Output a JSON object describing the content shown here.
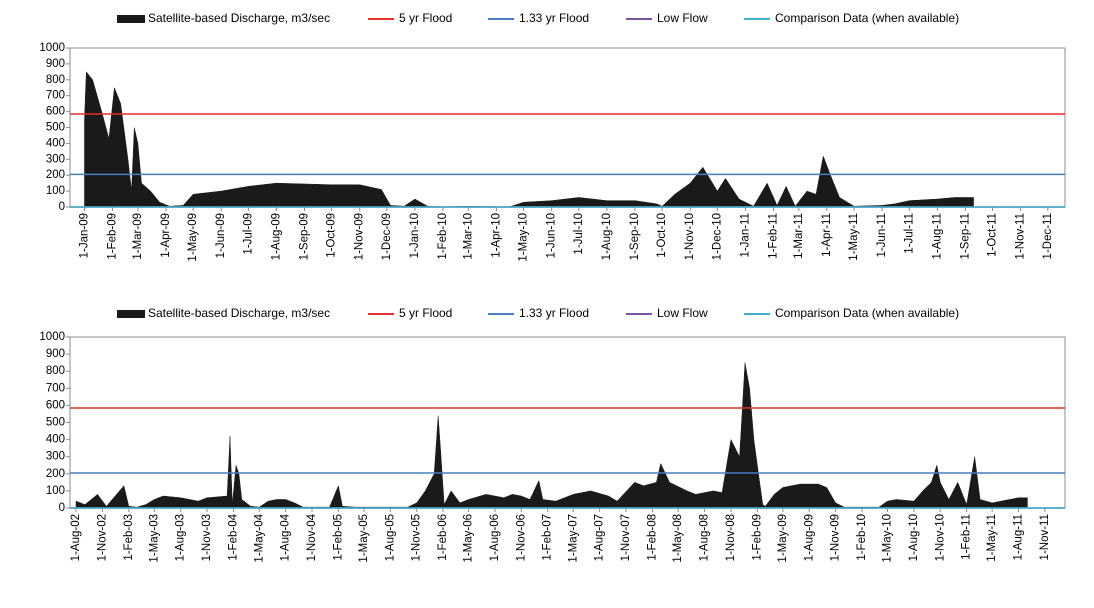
{
  "chart_data": [
    {
      "type": "area",
      "ylim": [
        0,
        1000
      ],
      "yticks": [
        0,
        100,
        200,
        300,
        400,
        500,
        600,
        700,
        800,
        900,
        1000
      ],
      "xlim": [
        "2008-12-16",
        "2011-12-20"
      ],
      "xticks": [
        {
          "value": "2009-01-01",
          "label": "1-Jan-09"
        },
        {
          "value": "2009-02-01",
          "label": "1-Feb-09"
        },
        {
          "value": "2009-03-01",
          "label": "1-Mar-09"
        },
        {
          "value": "2009-04-01",
          "label": "1-Apr-09"
        },
        {
          "value": "2009-05-01",
          "label": "1-May-09"
        },
        {
          "value": "2009-06-01",
          "label": "1-Jun-09"
        },
        {
          "value": "2009-07-01",
          "label": "1-Jul-09"
        },
        {
          "value": "2009-08-01",
          "label": "1-Aug-09"
        },
        {
          "value": "2009-09-01",
          "label": "1-Sep-09"
        },
        {
          "value": "2009-10-01",
          "label": "1-Oct-09"
        },
        {
          "value": "2009-11-01",
          "label": "1-Nov-09"
        },
        {
          "value": "2009-12-01",
          "label": "1-Dec-09"
        },
        {
          "value": "2010-01-01",
          "label": "1-Jan-10"
        },
        {
          "value": "2010-02-01",
          "label": "1-Feb-10"
        },
        {
          "value": "2010-03-01",
          "label": "1-Mar-10"
        },
        {
          "value": "2010-04-01",
          "label": "1-Apr-10"
        },
        {
          "value": "2010-05-01",
          "label": "1-May-10"
        },
        {
          "value": "2010-06-01",
          "label": "1-Jun-10"
        },
        {
          "value": "2010-07-01",
          "label": "1-Jul-10"
        },
        {
          "value": "2010-08-01",
          "label": "1-Aug-10"
        },
        {
          "value": "2010-09-01",
          "label": "1-Sep-10"
        },
        {
          "value": "2010-10-01",
          "label": "1-Oct-10"
        },
        {
          "value": "2010-11-01",
          "label": "1-Nov-10"
        },
        {
          "value": "2010-12-01",
          "label": "1-Dec-10"
        },
        {
          "value": "2011-01-01",
          "label": "1-Jan-11"
        },
        {
          "value": "2011-02-01",
          "label": "1-Feb-11"
        },
        {
          "value": "2011-03-01",
          "label": "1-Mar-11"
        },
        {
          "value": "2011-04-01",
          "label": "1-Apr-11"
        },
        {
          "value": "2011-05-01",
          "label": "1-May-11"
        },
        {
          "value": "2011-06-01",
          "label": "1-Jun-11"
        },
        {
          "value": "2011-07-01",
          "label": "1-Jul-11"
        },
        {
          "value": "2011-08-01",
          "label": "1-Aug-11"
        },
        {
          "value": "2011-09-01",
          "label": "1-Sep-11"
        },
        {
          "value": "2011-10-01",
          "label": "1-Oct-11"
        },
        {
          "value": "2011-11-01",
          "label": "1-Nov-11"
        },
        {
          "value": "2011-12-01",
          "label": "1-Dec-11"
        }
      ],
      "series": [
        {
          "name": "Satellite-based Discharge, m3/sec",
          "color": "#1a1a1a",
          "x": [
            "2009-01-01",
            "2009-01-03",
            "2009-01-10",
            "2009-01-20",
            "2009-01-28",
            "2009-02-03",
            "2009-02-10",
            "2009-02-18",
            "2009-02-22",
            "2009-02-25",
            "2009-03-01",
            "2009-03-05",
            "2009-03-15",
            "2009-03-25",
            "2009-04-05",
            "2009-04-20",
            "2009-05-01",
            "2009-06-01",
            "2009-07-01",
            "2009-08-01",
            "2009-09-01",
            "2009-10-01",
            "2009-11-01",
            "2009-11-25",
            "2009-12-05",
            "2009-12-20",
            "2010-01-01",
            "2010-01-15",
            "2010-02-01",
            "2010-03-01",
            "2010-04-15",
            "2010-05-01",
            "2010-06-01",
            "2010-07-01",
            "2010-08-01",
            "2010-09-01",
            "2010-09-25",
            "2010-10-01",
            "2010-10-15",
            "2010-11-01",
            "2010-11-15",
            "2010-12-01",
            "2010-12-10",
            "2010-12-25",
            "2011-01-10",
            "2011-01-25",
            "2011-02-05",
            "2011-02-15",
            "2011-02-25",
            "2011-03-10",
            "2011-03-20",
            "2011-03-28",
            "2011-04-05",
            "2011-04-15",
            "2011-05-01",
            "2011-06-01",
            "2011-06-15",
            "2011-07-01",
            "2011-08-01",
            "2011-08-20",
            "2011-09-10"
          ],
          "values": [
            550,
            850,
            800,
            600,
            430,
            750,
            650,
            300,
            100,
            500,
            400,
            150,
            100,
            30,
            5,
            10,
            80,
            100,
            130,
            150,
            145,
            140,
            140,
            110,
            10,
            5,
            50,
            5,
            0,
            5,
            0,
            30,
            40,
            60,
            40,
            40,
            20,
            5,
            80,
            150,
            250,
            100,
            180,
            50,
            5,
            150,
            10,
            130,
            5,
            100,
            80,
            320,
            200,
            60,
            5,
            10,
            20,
            40,
            50,
            60,
            60
          ]
        },
        {
          "name": "5 yr Flood",
          "color": "#e3312b",
          "level": 585
        },
        {
          "name": "1.33 yr Flood",
          "color": "#4a7cc4",
          "level": 205
        },
        {
          "name": "Low Flow",
          "color": "#7b52a8",
          "level": 0
        },
        {
          "name": "Comparison Data (when available)",
          "color": "#3fb3c9",
          "level": 0
        }
      ]
    },
    {
      "type": "area",
      "ylim": [
        0,
        1000
      ],
      "yticks": [
        0,
        100,
        200,
        300,
        400,
        500,
        600,
        700,
        800,
        900,
        1000
      ],
      "xlim": [
        "2002-07-11",
        "2012-01-10"
      ],
      "xticks": [
        {
          "value": "2002-08-01",
          "label": "1-Aug-02"
        },
        {
          "value": "2002-11-01",
          "label": "1-Nov-02"
        },
        {
          "value": "2003-02-01",
          "label": "1-Feb-03"
        },
        {
          "value": "2003-05-01",
          "label": "1-May-03"
        },
        {
          "value": "2003-08-01",
          "label": "1-Aug-03"
        },
        {
          "value": "2003-11-01",
          "label": "1-Nov-03"
        },
        {
          "value": "2004-02-01",
          "label": "1-Feb-04"
        },
        {
          "value": "2004-05-01",
          "label": "1-May-04"
        },
        {
          "value": "2004-08-01",
          "label": "1-Aug-04"
        },
        {
          "value": "2004-11-01",
          "label": "1-Nov-04"
        },
        {
          "value": "2005-02-01",
          "label": "1-Feb-05"
        },
        {
          "value": "2005-05-01",
          "label": "1-May-05"
        },
        {
          "value": "2005-08-01",
          "label": "1-Aug-05"
        },
        {
          "value": "2005-11-01",
          "label": "1-Nov-05"
        },
        {
          "value": "2006-02-01",
          "label": "1-Feb-06"
        },
        {
          "value": "2006-05-01",
          "label": "1-May-06"
        },
        {
          "value": "2006-08-01",
          "label": "1-Aug-06"
        },
        {
          "value": "2006-11-01",
          "label": "1-Nov-06"
        },
        {
          "value": "2007-02-01",
          "label": "1-Feb-07"
        },
        {
          "value": "2007-05-01",
          "label": "1-May-07"
        },
        {
          "value": "2007-08-01",
          "label": "1-Aug-07"
        },
        {
          "value": "2007-11-01",
          "label": "1-Nov-07"
        },
        {
          "value": "2008-02-01",
          "label": "1-Feb-08"
        },
        {
          "value": "2008-05-01",
          "label": "1-May-08"
        },
        {
          "value": "2008-08-01",
          "label": "1-Aug-08"
        },
        {
          "value": "2008-11-01",
          "label": "1-Nov-08"
        },
        {
          "value": "2009-02-01",
          "label": "1-Feb-09"
        },
        {
          "value": "2009-05-01",
          "label": "1-May-09"
        },
        {
          "value": "2009-08-01",
          "label": "1-Aug-09"
        },
        {
          "value": "2009-11-01",
          "label": "1-Nov-09"
        },
        {
          "value": "2010-02-01",
          "label": "1-Feb-10"
        },
        {
          "value": "2010-05-01",
          "label": "1-May-10"
        },
        {
          "value": "2010-08-01",
          "label": "1-Aug-10"
        },
        {
          "value": "2010-11-01",
          "label": "1-Nov-10"
        },
        {
          "value": "2011-02-01",
          "label": "1-Feb-11"
        },
        {
          "value": "2011-05-01",
          "label": "1-May-11"
        },
        {
          "value": "2011-08-01",
          "label": "1-Aug-11"
        },
        {
          "value": "2011-11-01",
          "label": "1-Nov-11"
        }
      ],
      "series": [
        {
          "name": "Satellite-based Discharge, m3/sec",
          "color": "#1a1a1a",
          "x": [
            "2002-08-01",
            "2002-09-01",
            "2002-10-15",
            "2002-11-15",
            "2003-01-15",
            "2003-02-01",
            "2003-03-01",
            "2003-04-01",
            "2003-05-01",
            "2003-06-01",
            "2003-08-01",
            "2003-10-01",
            "2003-11-01",
            "2004-01-10",
            "2004-01-20",
            "2004-01-28",
            "2004-02-10",
            "2004-02-20",
            "2004-03-01",
            "2004-04-01",
            "2004-05-01",
            "2004-06-01",
            "2004-07-01",
            "2004-08-01",
            "2004-09-01",
            "2004-10-01",
            "2005-01-01",
            "2005-02-01",
            "2005-02-15",
            "2005-04-01",
            "2005-07-01",
            "2005-10-01",
            "2005-11-01",
            "2005-12-01",
            "2006-01-01",
            "2006-01-15",
            "2006-01-25",
            "2006-02-05",
            "2006-03-01",
            "2006-04-01",
            "2006-05-01",
            "2006-07-01",
            "2006-09-01",
            "2006-10-01",
            "2006-11-01",
            "2006-12-01",
            "2007-01-01",
            "2007-01-15",
            "2007-03-01",
            "2007-05-01",
            "2007-07-01",
            "2007-09-01",
            "2007-10-01",
            "2007-12-01",
            "2008-01-01",
            "2008-02-15",
            "2008-03-01",
            "2008-04-01",
            "2008-06-01",
            "2008-07-01",
            "2008-09-01",
            "2008-10-01",
            "2008-11-01",
            "2008-12-01",
            "2008-12-20",
            "2009-01-05",
            "2009-01-20",
            "2009-02-05",
            "2009-02-20",
            "2009-03-01",
            "2009-04-01",
            "2009-05-01",
            "2009-07-01",
            "2009-09-01",
            "2009-10-01",
            "2009-11-01",
            "2009-12-01",
            "2010-02-01",
            "2010-04-01",
            "2010-05-01",
            "2010-06-01",
            "2010-08-01",
            "2010-09-01",
            "2010-10-01",
            "2010-10-20",
            "2010-11-01",
            "2010-12-01",
            "2011-01-01",
            "2011-02-01",
            "2011-03-01",
            "2011-03-20",
            "2011-05-01",
            "2011-07-01",
            "2011-08-01",
            "2011-09-01"
          ],
          "values": [
            40,
            20,
            80,
            10,
            130,
            10,
            5,
            20,
            50,
            70,
            60,
            40,
            60,
            70,
            420,
            20,
            250,
            200,
            50,
            10,
            5,
            40,
            50,
            50,
            30,
            5,
            5,
            130,
            10,
            5,
            5,
            5,
            30,
            100,
            200,
            540,
            300,
            20,
            100,
            30,
            50,
            80,
            60,
            80,
            70,
            50,
            160,
            50,
            40,
            80,
            100,
            70,
            40,
            150,
            130,
            150,
            260,
            150,
            100,
            80,
            100,
            90,
            400,
            300,
            850,
            700,
            400,
            200,
            20,
            10,
            80,
            120,
            140,
            140,
            120,
            30,
            5,
            5,
            5,
            40,
            50,
            40,
            100,
            150,
            250,
            150,
            50,
            150,
            20,
            300,
            50,
            30,
            50,
            60,
            60
          ]
        },
        {
          "name": "5 yr Flood",
          "color": "#e3312b",
          "level": 585
        },
        {
          "name": "1.33 yr Flood",
          "color": "#4a7cc4",
          "level": 205
        },
        {
          "name": "Low Flow",
          "color": "#7b52a8",
          "level": 0
        },
        {
          "name": "Comparison Data (when available)",
          "color": "#3fb3c9",
          "level": 0
        }
      ]
    }
  ]
}
